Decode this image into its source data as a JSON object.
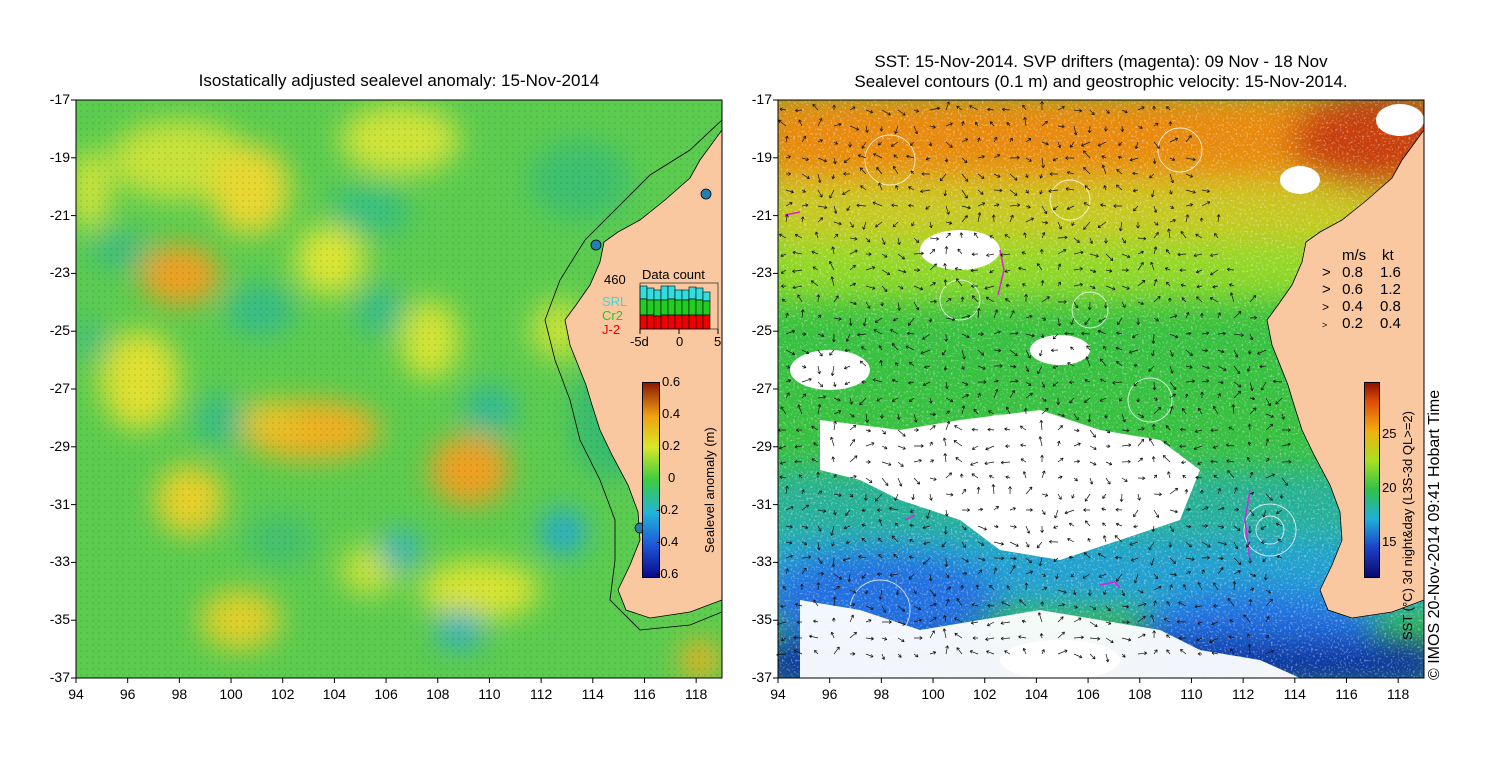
{
  "left_panel": {
    "title": "Isostatically adjusted sealevel anomaly: 15-Nov-2014",
    "y_ticks": [
      "-17",
      "-19",
      "-21",
      "-23",
      "-25",
      "-27",
      "-29",
      "-31",
      "-33",
      "-35",
      "-37"
    ],
    "x_ticks": [
      "94",
      "96",
      "98",
      "100",
      "102",
      "104",
      "106",
      "108",
      "110",
      "112",
      "114",
      "116",
      "118"
    ],
    "colorbar": {
      "label": "Sealevel anomaly (m)",
      "ticks": [
        "0.6",
        "0.4",
        "0.2",
        "0",
        "-0.2",
        "-0.4",
        "-0.6"
      ],
      "range": [
        -0.6,
        0.6
      ]
    },
    "data_count": {
      "title": "Data count",
      "max_label": "460",
      "series": [
        {
          "name": "SRL",
          "color": "#33dddd"
        },
        {
          "name": "Cr2",
          "color": "#22cc22"
        },
        {
          "name": "J-2",
          "color": "#ee0000"
        }
      ],
      "x_ticks": [
        "-5d",
        "0",
        "5"
      ]
    }
  },
  "right_panel": {
    "title_line1": "SST: 15-Nov-2014. SVP drifters (magenta): 09 Nov - 18 Nov",
    "title_line2": "Sealevel contours (0.1 m) and geostrophic velocity: 15-Nov-2014.",
    "y_ticks": [
      "-17",
      "-19",
      "-21",
      "-23",
      "-25",
      "-27",
      "-29",
      "-31",
      "-33",
      "-35",
      "-37"
    ],
    "x_ticks": [
      "94",
      "96",
      "98",
      "100",
      "102",
      "104",
      "106",
      "108",
      "110",
      "112",
      "114",
      "116",
      "118"
    ],
    "velocity_legend": {
      "header_ms": "m/s",
      "header_kt": "kt",
      "rows": [
        {
          "ms": "0.8",
          "kt": "1.6"
        },
        {
          "ms": "0.6",
          "kt": "1.2"
        },
        {
          "ms": "0.4",
          "kt": "0.8"
        },
        {
          "ms": "0.2",
          "kt": "0.4"
        }
      ]
    },
    "colorbar": {
      "label": "SST (°C) 3d night&day (L3S-3d QL>=2)",
      "ticks": [
        "25",
        "20",
        "15"
      ],
      "range": [
        12,
        30
      ]
    }
  },
  "credit": "© IMOS 20-Nov-2014 09:41 Hobart Time",
  "colors": {
    "land": "#f9c8a0",
    "coast": "#000000",
    "sst_warm": "#e07800",
    "ssh_base": "#44cc55"
  }
}
